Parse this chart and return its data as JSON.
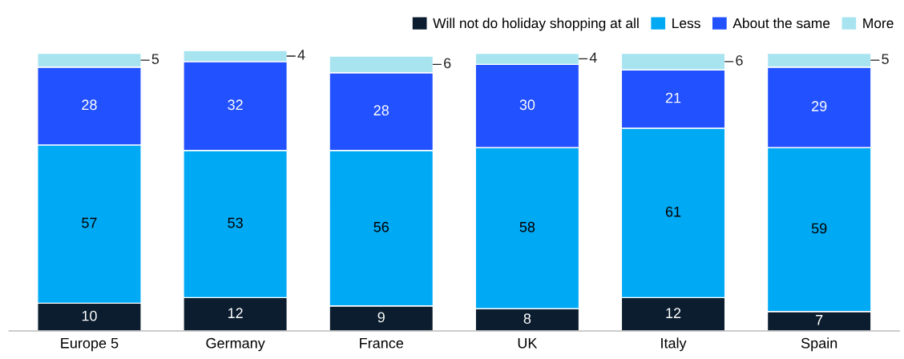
{
  "chart_data": {
    "type": "bar",
    "stacked": true,
    "data_labels": true,
    "legend": "top right",
    "grid": false,
    "categories": [
      "Europe 5",
      "Germany",
      "France",
      "UK",
      "Italy",
      "Spain"
    ],
    "series": [
      {
        "name": "Will not do holiday shopping at all",
        "color": "#0b1d2e",
        "values": [
          10,
          12,
          9,
          8,
          12,
          7
        ]
      },
      {
        "name": "Less",
        "color": "#00a9f4",
        "values": [
          57,
          53,
          56,
          58,
          61,
          59
        ]
      },
      {
        "name": "About the same",
        "color": "#2251ff",
        "values": [
          28,
          32,
          28,
          30,
          21,
          29
        ]
      },
      {
        "name": "More",
        "color": "#a8e4f0",
        "values": [
          5,
          4,
          6,
          4,
          6,
          5
        ]
      }
    ]
  }
}
